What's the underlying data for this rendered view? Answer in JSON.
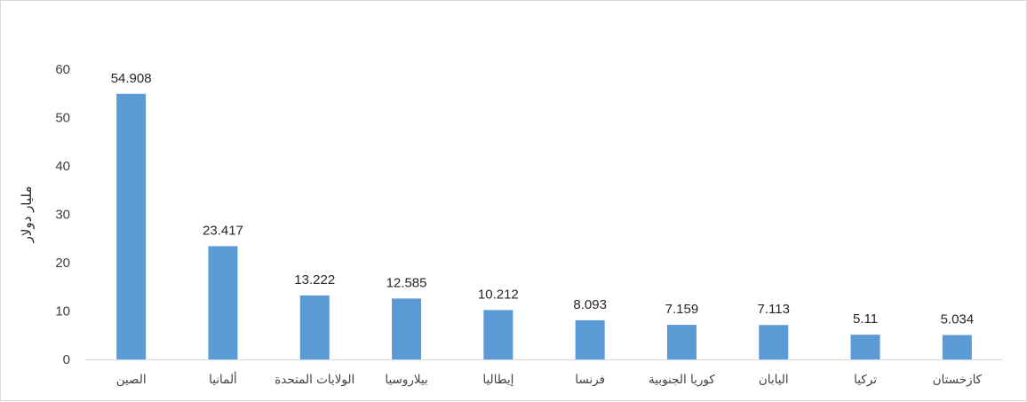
{
  "chart_data": {
    "type": "bar",
    "title": "",
    "xlabel": "",
    "ylabel": "مليار دولار",
    "ylim": [
      0,
      60
    ],
    "yticks": [
      0,
      10,
      20,
      30,
      40,
      50,
      60
    ],
    "grid": false,
    "legend": "none",
    "bar_color": "#5b9bd5",
    "categories": [
      "الصين",
      "ألمانيا",
      "الولايات المتحدة",
      "بيلاروسيا",
      "إيطاليا",
      "فرنسا",
      "كوريا الجنوبية",
      "اليابان",
      "تركيا",
      "كازخستان"
    ],
    "values": [
      54.908,
      23.417,
      13.222,
      12.585,
      10.212,
      8.093,
      7.159,
      7.113,
      5.11,
      5.034
    ],
    "data_labels": [
      "54.908",
      "23.417",
      "13.222",
      "12.585",
      "10.212",
      "8.093",
      "7.159",
      "7.113",
      "5.11",
      "5.034"
    ]
  }
}
